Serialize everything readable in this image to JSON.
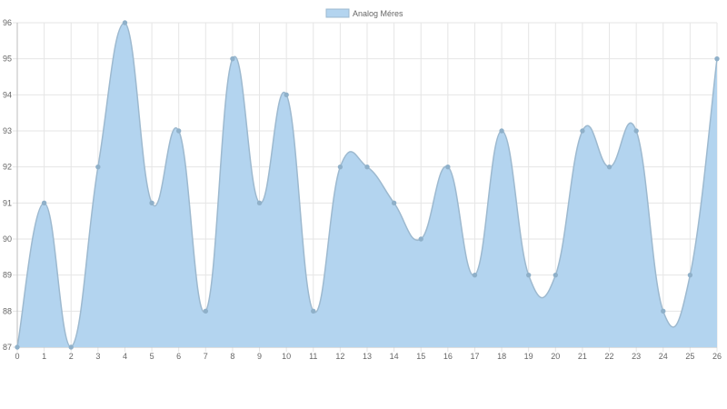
{
  "chart_data": {
    "type": "area",
    "legend": {
      "label": "Analog Méres",
      "position": "top-center"
    },
    "x": [
      0,
      1,
      2,
      3,
      4,
      5,
      6,
      7,
      8,
      9,
      10,
      11,
      12,
      13,
      14,
      15,
      16,
      17,
      18,
      19,
      20,
      21,
      22,
      23,
      24,
      25,
      26
    ],
    "series": [
      {
        "name": "Analog Méres",
        "values": [
          87,
          91,
          87,
          92,
          96,
          91,
          93,
          88,
          95,
          91,
          94,
          88,
          92,
          92,
          91,
          90,
          92,
          89,
          93,
          89,
          89,
          93,
          92,
          93,
          88,
          89,
          95
        ]
      }
    ],
    "ylim": [
      87,
      96
    ],
    "y_ticks": [
      87,
      88,
      89,
      90,
      91,
      92,
      93,
      94,
      95,
      96
    ],
    "xlabel": "",
    "ylabel": "",
    "grid": true,
    "fill_color": "#b3d4ef",
    "line_color": "#9db9cf",
    "point_color": "#8fb0c9"
  }
}
